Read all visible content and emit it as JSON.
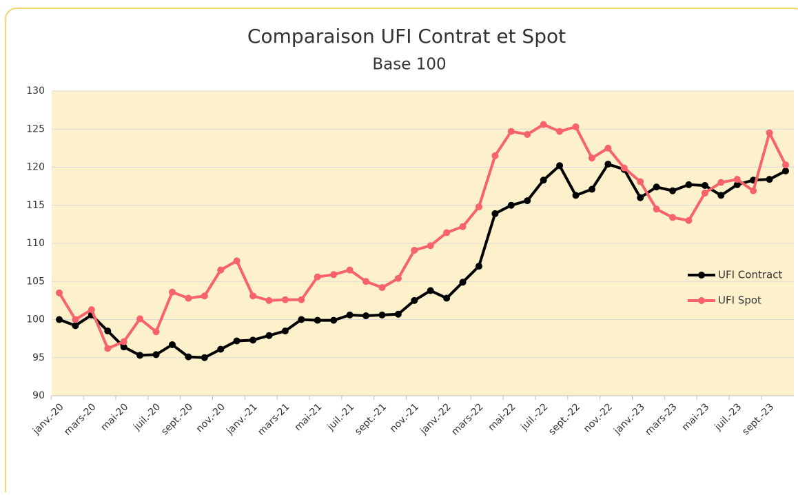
{
  "chart_data": {
    "type": "line",
    "title": "Comparaison UFI Contrat et Spot",
    "subtitle": "Base 100",
    "categories": [
      "janv.-20",
      null,
      "mars-20",
      null,
      "mai-20",
      null,
      "juil.-20",
      null,
      "sept.-20",
      null,
      "nov.-20",
      null,
      "janv.-21",
      null,
      "mars-21",
      null,
      "mai-21",
      null,
      "juil.-21",
      null,
      "sept.-21",
      null,
      "nov.-21",
      null,
      "janv.-22",
      null,
      "mars-22",
      null,
      "mai-22",
      null,
      "juil.-22",
      null,
      "sept.-22",
      null,
      "nov.-22",
      null,
      "janv.-23",
      null,
      "mars-23",
      null,
      "mai-23",
      null,
      "juil.-23",
      null,
      "sept.-23",
      null
    ],
    "series": [
      {
        "name": "UFI Contract",
        "color": "#000000",
        "values": [
          100,
          99.2,
          100.6,
          98.5,
          96.4,
          95.3,
          95.4,
          96.7,
          95.1,
          95.0,
          96.1,
          97.2,
          97.3,
          97.9,
          98.5,
          100.0,
          99.9,
          99.9,
          100.6,
          100.5,
          100.6,
          100.7,
          102.5,
          103.8,
          102.8,
          104.9,
          107.0,
          113.9,
          115.0,
          115.6,
          118.3,
          120.2,
          116.3,
          117.1,
          120.4,
          119.7,
          116.0,
          117.4,
          116.9,
          117.7,
          117.6,
          116.3,
          117.7,
          118.3,
          118.4,
          119.5
        ]
      },
      {
        "name": "UFI Spot",
        "color": "#f8626a",
        "values": [
          103.5,
          100.0,
          101.3,
          96.2,
          97.1,
          100.1,
          98.4,
          103.6,
          102.8,
          103.1,
          106.5,
          107.7,
          103.1,
          102.5,
          102.6,
          102.6,
          105.6,
          105.9,
          106.5,
          105.0,
          104.2,
          105.4,
          109.1,
          109.7,
          111.4,
          112.2,
          114.8,
          121.5,
          124.7,
          124.3,
          125.6,
          124.7,
          125.3,
          121.2,
          122.5,
          119.9,
          118.1,
          114.5,
          113.4,
          113.0,
          116.6,
          118.0,
          118.4,
          116.9,
          124.5,
          120.3
        ]
      }
    ],
    "ylim": [
      90,
      130
    ],
    "yticks": [
      90,
      95,
      100,
      105,
      110,
      115,
      120,
      125,
      130
    ],
    "grid": true,
    "legend": "right",
    "plot_background": "#fdf1cc"
  }
}
